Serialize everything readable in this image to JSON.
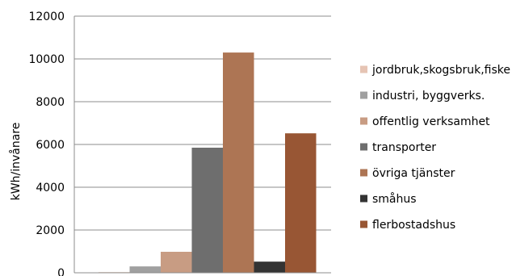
{
  "chart_data": {
    "type": "bar",
    "ylabel": "kWh/invånare",
    "ylim": [
      0,
      12000
    ],
    "yticks": [
      0,
      2000,
      4000,
      6000,
      8000,
      10000,
      12000
    ],
    "grid": true,
    "legend_position": "right",
    "series": [
      {
        "name": "jordbruk,skogsbruk,fiske",
        "value": 30,
        "color": "#e6c4b4"
      },
      {
        "name": "industri, byggverks.",
        "value": 300,
        "color": "#a0a0a0"
      },
      {
        "name": "offentlig verksamhet",
        "value": 980,
        "color": "#c89c83"
      },
      {
        "name": "transporter",
        "value": 5850,
        "color": "#6e6e6e"
      },
      {
        "name": "övriga tjänster",
        "value": 10300,
        "color": "#ad7554"
      },
      {
        "name": "småhus",
        "value": 520,
        "color": "#333333"
      },
      {
        "name": "flerbostadshus",
        "value": 6520,
        "color": "#985634"
      }
    ]
  }
}
